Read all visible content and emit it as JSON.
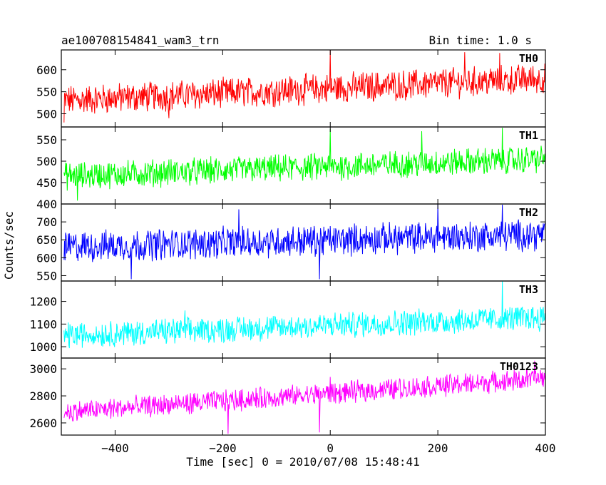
{
  "header": {
    "title": "ae100708154841_wam3_trn",
    "bin_time": "Bin time: 1.0 s"
  },
  "chart_data": {
    "type": "line",
    "title": "ae100708154841_wam3_trn",
    "subtitle": "Bin time: 1.0 s",
    "xlabel": "Time [sec] 0 = 2010/07/08 15:48:41",
    "ylabel": "Counts/sec",
    "xlim": [
      -500,
      400
    ],
    "x_ticks": [
      -400,
      -200,
      0,
      200,
      400
    ],
    "x_tick_labels": [
      "−400",
      "−200",
      "0",
      "200",
      "400"
    ],
    "grid": false,
    "panels": [
      {
        "name": "TH0",
        "color": "#ff0000",
        "ylim": [
          470,
          645
        ],
        "y_ticks": [
          500,
          550,
          600
        ],
        "trend_start": 530,
        "trend_end": 580,
        "noise": 30,
        "min": 480,
        "max": 645,
        "spikes": [
          [
            -495,
            480
          ],
          [
            -300,
            490
          ],
          [
            0,
            645
          ],
          [
            250,
            640
          ],
          [
            315,
            638
          ]
        ]
      },
      {
        "name": "TH1",
        "color": "#00ff00",
        "ylim": [
          400,
          580
        ],
        "y_ticks": [
          400,
          450,
          500,
          550
        ],
        "trend_start": 465,
        "trend_end": 505,
        "noise": 28,
        "min": 405,
        "max": 578,
        "spikes": [
          [
            -470,
            408
          ],
          [
            0,
            575
          ],
          [
            170,
            570
          ],
          [
            320,
            578
          ]
        ]
      },
      {
        "name": "TH2",
        "color": "#0000ff",
        "ylim": [
          535,
          750
        ],
        "y_ticks": [
          550,
          600,
          650,
          700
        ],
        "trend_start": 630,
        "trend_end": 665,
        "noise": 38,
        "min": 538,
        "max": 750,
        "spikes": [
          [
            -370,
            540
          ],
          [
            -170,
            735
          ],
          [
            -20,
            540
          ],
          [
            200,
            750
          ],
          [
            320,
            748
          ]
        ]
      },
      {
        "name": "TH3",
        "color": "#00ffff",
        "ylim": [
          950,
          1290
        ],
        "y_ticks": [
          1000,
          1100,
          1200
        ],
        "trend_start": 1050,
        "trend_end": 1130,
        "noise": 50,
        "min": 955,
        "max": 1290,
        "spikes": [
          [
            -270,
            1160
          ],
          [
            320,
            1290
          ]
        ]
      },
      {
        "name": "TH0123",
        "color": "#ff00ff",
        "ylim": [
          2510,
          3080
        ],
        "y_ticks": [
          2600,
          2800,
          3000
        ],
        "trend_start": 2680,
        "trend_end": 2930,
        "noise": 70,
        "min": 2515,
        "max": 3060,
        "spikes": [
          [
            0,
            2940
          ],
          [
            -20,
            2530
          ],
          [
            -190,
            2520
          ],
          [
            380,
            3060
          ]
        ]
      }
    ]
  }
}
